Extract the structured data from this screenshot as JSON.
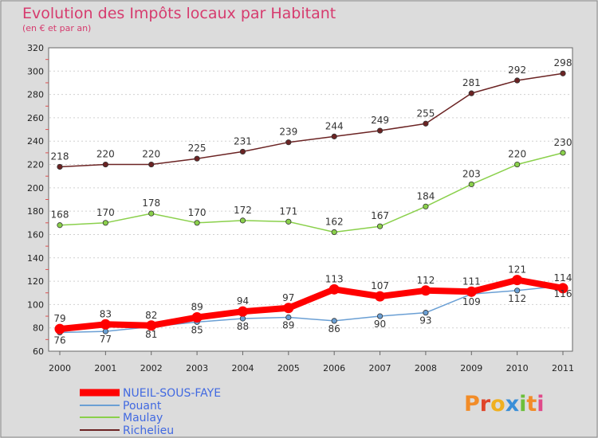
{
  "title": "Evolution des Impôts locaux par Habitant",
  "subtitle": "(en € et par an)",
  "logo_text": "Proxiti",
  "chart_data": {
    "type": "line",
    "x": [
      2000,
      2001,
      2002,
      2003,
      2004,
      2005,
      2006,
      2007,
      2008,
      2009,
      2010,
      2011
    ],
    "xlabel": "",
    "ylabel": "",
    "ylim": [
      60,
      320
    ],
    "yticks": [
      60,
      80,
      100,
      120,
      140,
      160,
      180,
      200,
      220,
      240,
      260,
      280,
      300,
      320
    ],
    "grid": "horizontal",
    "legend_position": "bottom-left",
    "series": [
      {
        "name": "NUEIL-SOUS-FAYE",
        "values": [
          79,
          83,
          82,
          89,
          94,
          97,
          113,
          107,
          112,
          111,
          121,
          114
        ],
        "color": "#ff0000"
      },
      {
        "name": "Pouant",
        "values": [
          76,
          77,
          81,
          85,
          88,
          89,
          86,
          90,
          93,
          109,
          112,
          116
        ],
        "color": "#6a9fd4"
      },
      {
        "name": "Maulay",
        "values": [
          168,
          170,
          178,
          170,
          172,
          171,
          162,
          167,
          184,
          203,
          220,
          230
        ],
        "color": "#8ad04b"
      },
      {
        "name": "Richelieu",
        "values": [
          218,
          220,
          220,
          225,
          231,
          239,
          244,
          249,
          255,
          281,
          292,
          298
        ],
        "color": "#6b2323"
      }
    ]
  }
}
